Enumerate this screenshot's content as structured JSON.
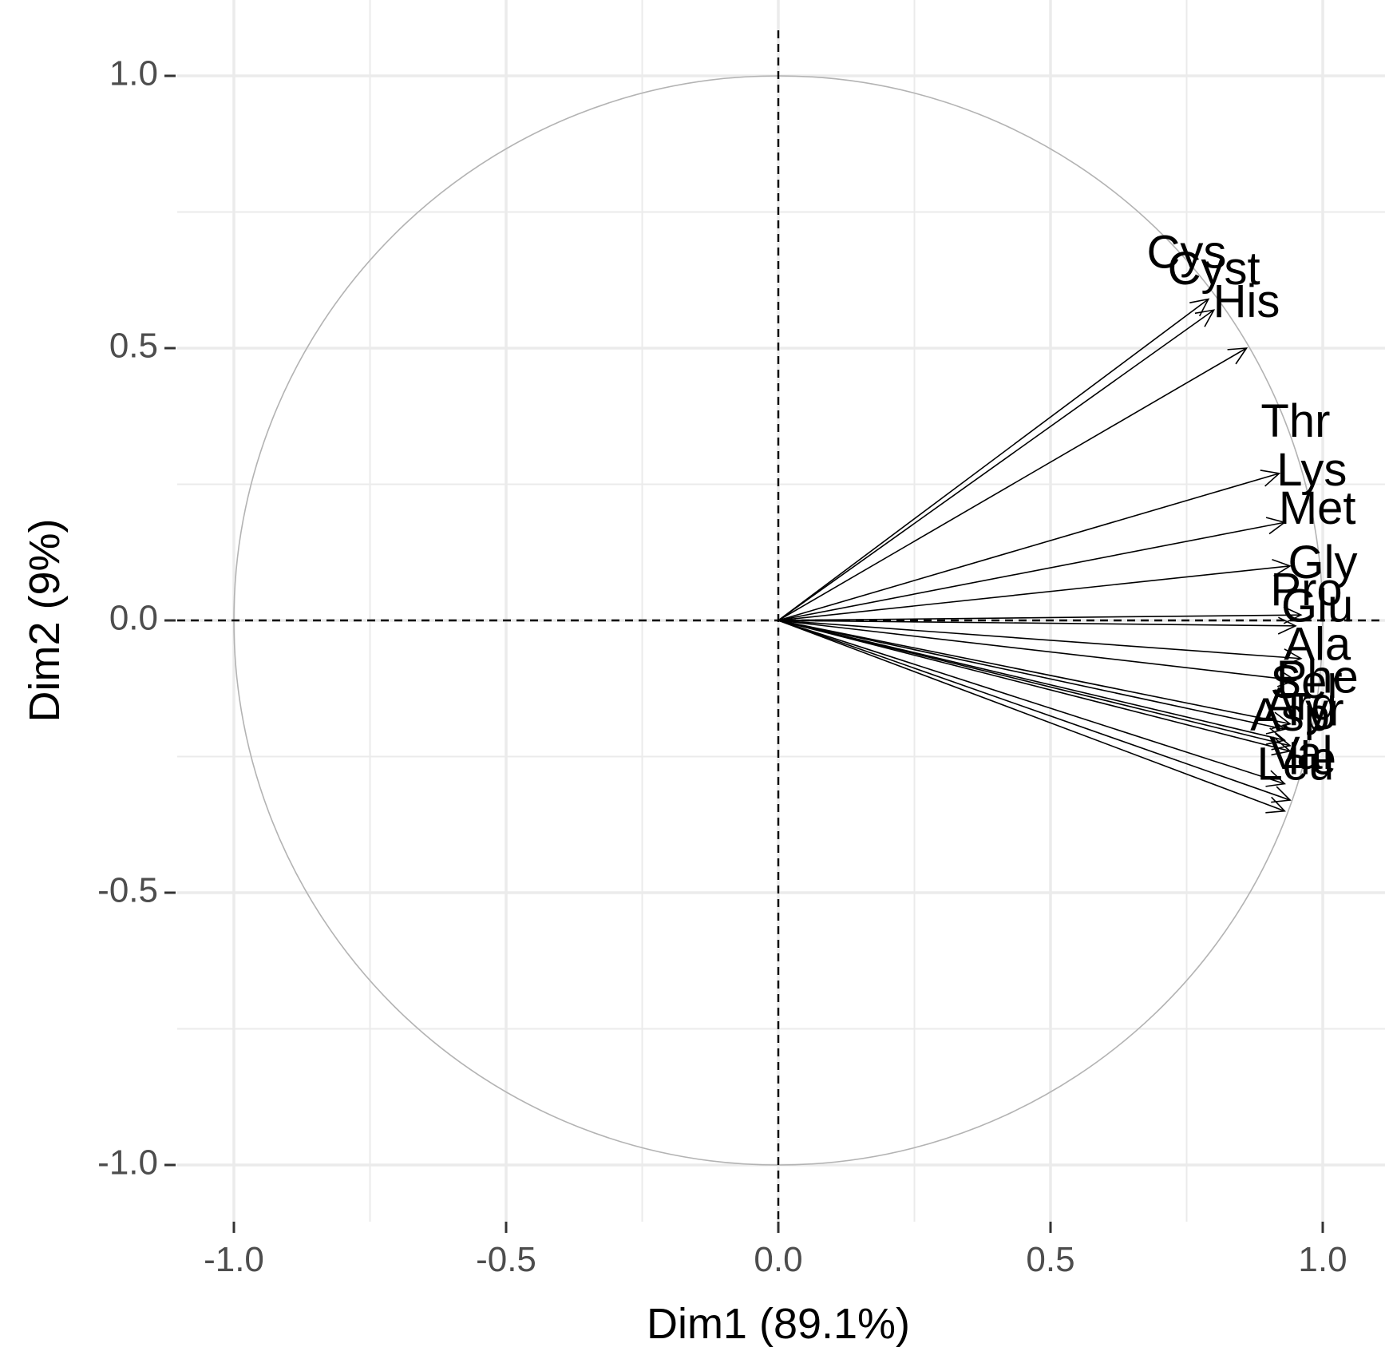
{
  "chart_data": {
    "type": "scatter",
    "subtype": "pca-variable-correlation-circle",
    "title": "",
    "xlabel": "Dim1 (89.1%)",
    "ylabel": "Dim2 (9%)",
    "xlim": [
      -1.0,
      1.0
    ],
    "ylim": [
      -1.0,
      1.0
    ],
    "x_ticks": [
      -1.0,
      -0.5,
      0.0,
      0.5,
      1.0
    ],
    "y_ticks": [
      -1.0,
      -0.5,
      0.0,
      0.5,
      1.0
    ],
    "x_tick_labels": [
      "-1.0",
      "-0.5",
      "0.0",
      "0.5",
      "1.0"
    ],
    "y_tick_labels": [
      "-1.0",
      "-0.5",
      "0.0",
      "0.5",
      "1.0"
    ],
    "grid": true,
    "unit_circle": true,
    "reference_lines": {
      "x": 0,
      "y": 0,
      "style": "dashed"
    },
    "variables": [
      {
        "name": "Cys",
        "x": 0.79,
        "y": 0.59,
        "label_x": 0.75,
        "label_y": 0.67
      },
      {
        "name": "Cyst",
        "x": 0.8,
        "y": 0.57,
        "label_x": 0.8,
        "label_y": 0.64
      },
      {
        "name": "His",
        "x": 0.86,
        "y": 0.5,
        "label_x": 0.86,
        "label_y": 0.58
      },
      {
        "name": "Thr",
        "x": 0.92,
        "y": 0.27,
        "label_x": 0.95,
        "label_y": 0.36
      },
      {
        "name": "Lys",
        "x": 0.93,
        "y": 0.18,
        "label_x": 0.98,
        "label_y": 0.27
      },
      {
        "name": "Met",
        "x": 0.94,
        "y": 0.1,
        "label_x": 0.99,
        "label_y": 0.2
      },
      {
        "name": "Gly",
        "x": 0.96,
        "y": 0.01,
        "label_x": 1.0,
        "label_y": 0.1
      },
      {
        "name": "Pro",
        "x": 0.95,
        "y": -0.01,
        "label_x": 0.97,
        "label_y": 0.05
      },
      {
        "name": "Glu",
        "x": 0.96,
        "y": -0.07,
        "label_x": 0.99,
        "label_y": 0.02
      },
      {
        "name": "Ala",
        "x": 0.95,
        "y": -0.11,
        "label_x": 0.99,
        "label_y": -0.05
      },
      {
        "name": "Phe",
        "x": 0.94,
        "y": -0.19,
        "label_x": 0.99,
        "label_y": -0.11
      },
      {
        "name": "Ser",
        "x": 0.93,
        "y": -0.2,
        "label_x": 0.97,
        "label_y": -0.12
      },
      {
        "name": "Arg",
        "x": 0.93,
        "y": -0.22,
        "label_x": 0.96,
        "label_y": -0.16
      },
      {
        "name": "Asp",
        "x": 0.94,
        "y": -0.23,
        "label_x": 0.94,
        "label_y": -0.18
      },
      {
        "name": "Tyr",
        "x": 0.94,
        "y": -0.24,
        "label_x": 0.98,
        "label_y": -0.17
      },
      {
        "name": "Val",
        "x": 0.93,
        "y": -0.3,
        "label_x": 0.96,
        "label_y": -0.25
      },
      {
        "name": "Leu",
        "x": 0.94,
        "y": -0.33,
        "label_x": 0.95,
        "label_y": -0.27
      },
      {
        "name": "Ile",
        "x": 0.93,
        "y": -0.35,
        "label_x": 0.98,
        "label_y": -0.26
      }
    ]
  }
}
